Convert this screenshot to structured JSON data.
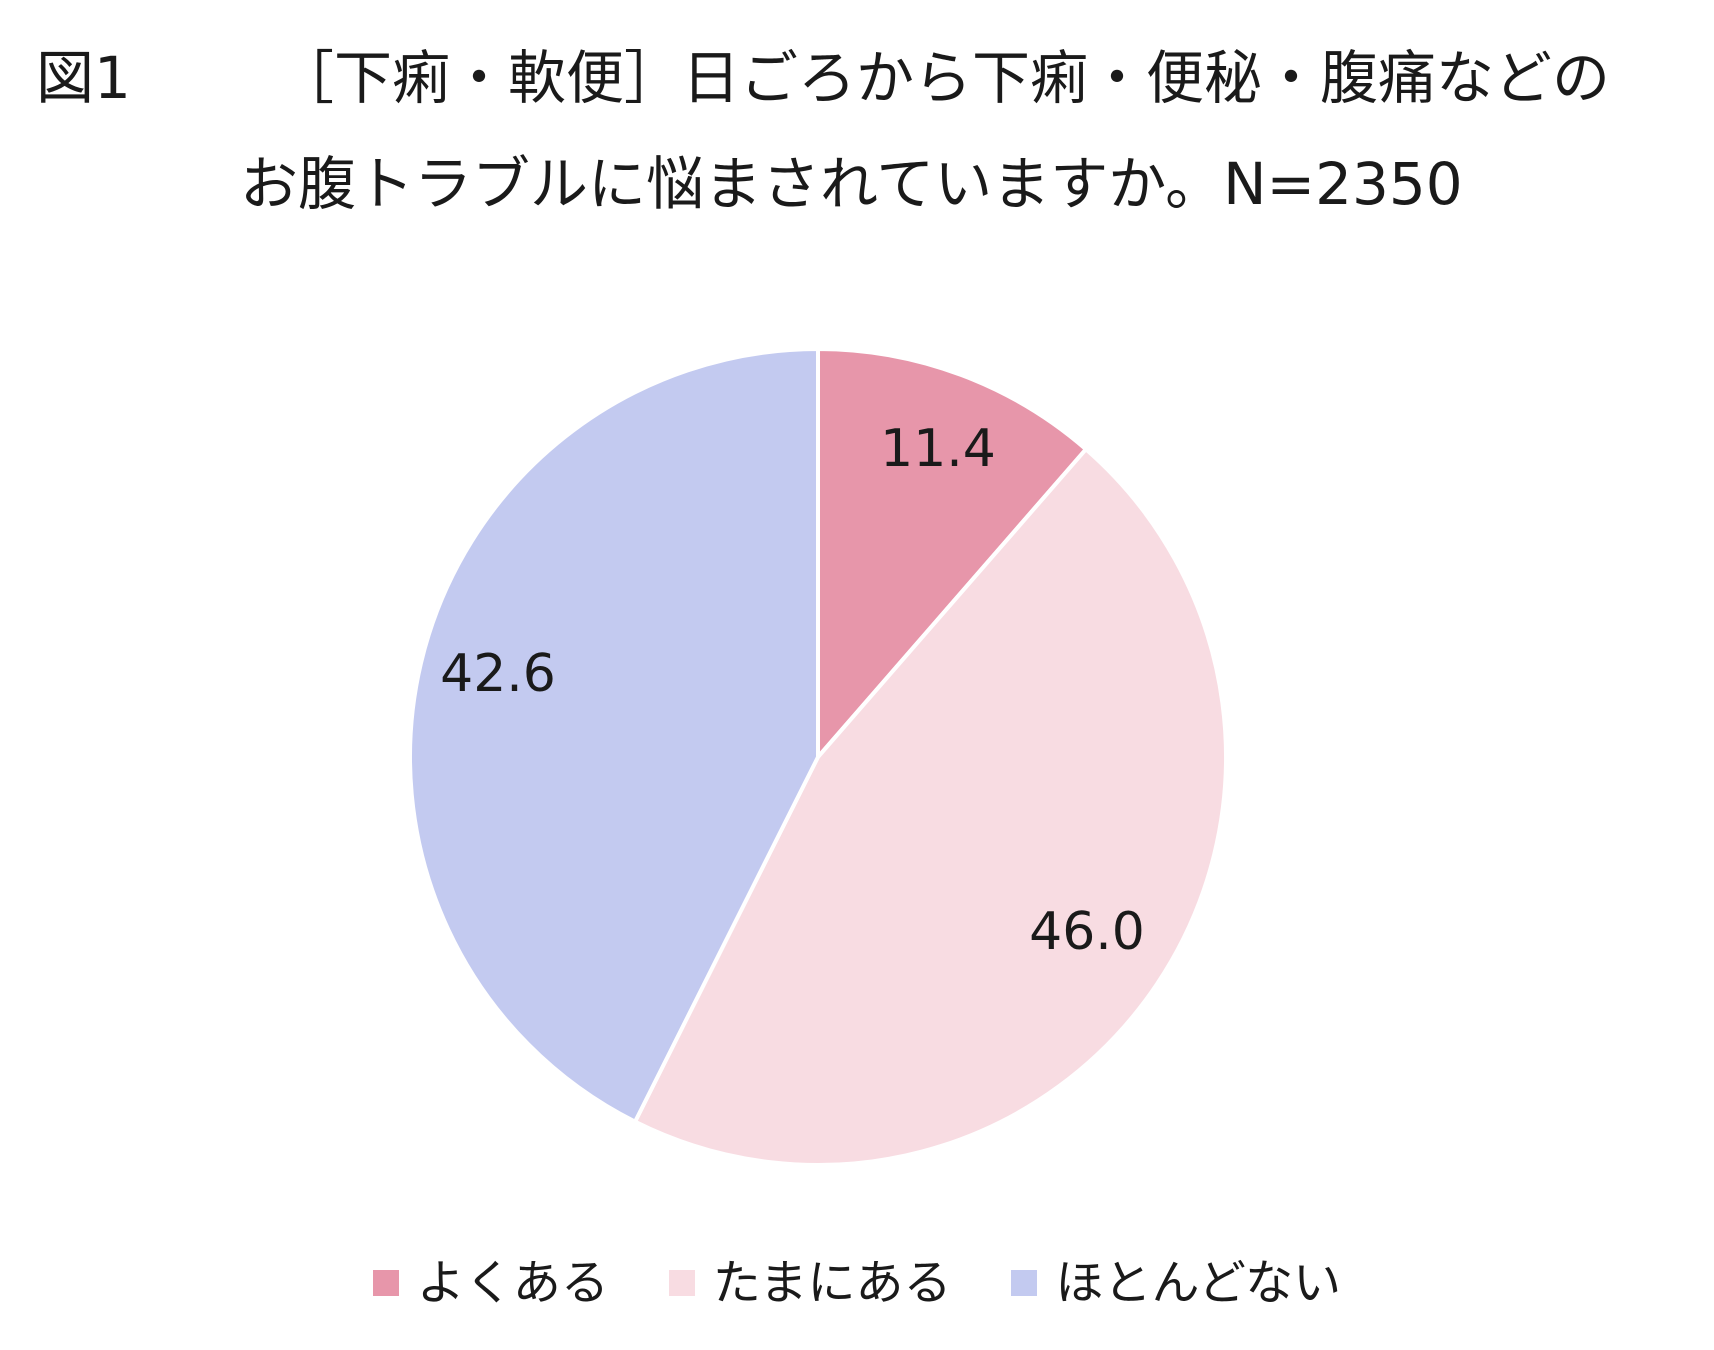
{
  "title": {
    "figure_label": "図1",
    "line1": "［下痢・軟便］日ごろから下痢・便秘・腹痛などの",
    "line2": "お腹トラブルに悩まされていますか。N=2350"
  },
  "chart_data": {
    "type": "pie",
    "title": "［下痢・軟便］日ごろから下痢・便秘・腹痛などの お腹トラブルに悩まされていますか。N=2350",
    "start_angle_deg": 0,
    "direction": "clockwise",
    "legend_position": "bottom",
    "slices": [
      {
        "label": "よくある",
        "value": 11.4,
        "value_label": "11.4",
        "color": "#e796aa"
      },
      {
        "label": "たまにある",
        "value": 46.0,
        "value_label": "46.0",
        "color": "#f8dce2"
      },
      {
        "label": "ほとんどない",
        "value": 42.6,
        "value_label": "42.6",
        "color": "#c3caf0"
      }
    ]
  }
}
